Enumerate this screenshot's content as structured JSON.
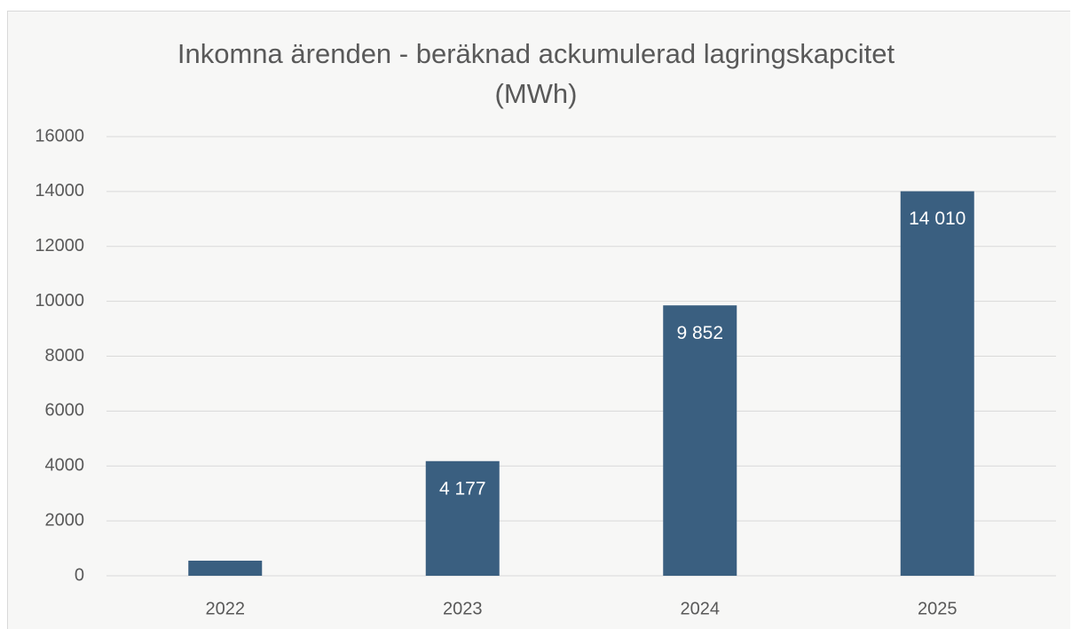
{
  "chart_data": {
    "type": "bar",
    "title": "Inkomna ärenden - beräknad ackumulerad lagringskapcitet (MWh)",
    "categories": [
      "2022",
      "2023",
      "2024",
      "2025"
    ],
    "values": [
      550,
      4177,
      9852,
      14010
    ],
    "value_labels": [
      null,
      "4 177",
      "9 852",
      "14 010"
    ],
    "color": "#3a5f80",
    "ylim": [
      0,
      16000
    ],
    "yticks": [
      0,
      2000,
      4000,
      6000,
      8000,
      10000,
      12000,
      14000,
      16000
    ],
    "grid": true
  }
}
